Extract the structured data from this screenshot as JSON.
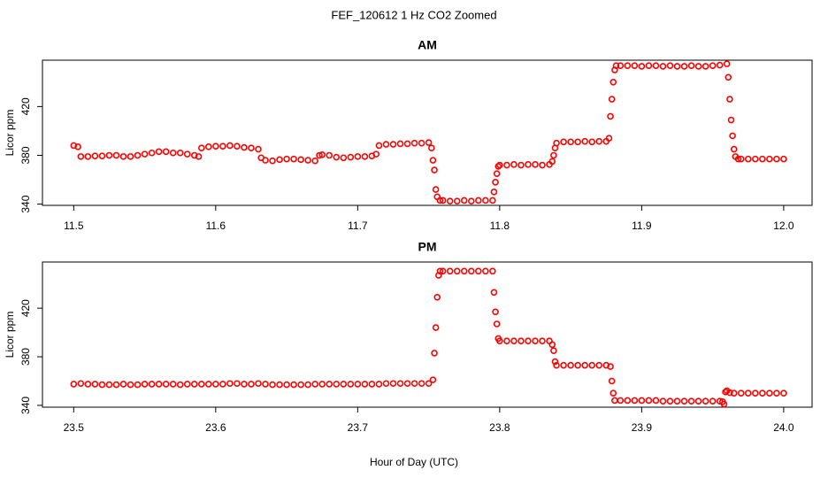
{
  "title": "FEF_120612 1 Hz CO2 Zoomed",
  "chart_data": [
    {
      "type": "scatter",
      "title": "AM",
      "ylabel": "Licor ppm",
      "color": "#ff0000",
      "xlim": [
        11.478,
        12.02
      ],
      "ylim": [
        339,
        458
      ],
      "xticks": [
        11.5,
        11.6,
        11.7,
        11.8,
        11.9,
        {
          "value": 12,
          "label": "12.0"
        }
      ],
      "yticks": [
        340,
        380,
        420
      ],
      "x": [
        11.5,
        11.503,
        11.505,
        11.51,
        11.515,
        11.52,
        11.525,
        11.53,
        11.535,
        11.54,
        11.545,
        11.55,
        11.555,
        11.56,
        11.565,
        11.57,
        11.575,
        11.58,
        11.585,
        11.588,
        11.59,
        11.595,
        11.6,
        11.605,
        11.61,
        11.615,
        11.62,
        11.625,
        11.63,
        11.632,
        11.635,
        11.64,
        11.645,
        11.65,
        11.655,
        11.66,
        11.665,
        11.67,
        11.673,
        11.675,
        11.68,
        11.685,
        11.69,
        11.695,
        11.7,
        11.705,
        11.71,
        11.713,
        11.715,
        11.72,
        11.725,
        11.73,
        11.735,
        11.74,
        11.745,
        11.75,
        11.752,
        11.753,
        11.754,
        11.755,
        11.756,
        11.758,
        11.76,
        11.765,
        11.77,
        11.775,
        11.78,
        11.785,
        11.79,
        11.795,
        11.796,
        11.797,
        11.798,
        11.799,
        11.8,
        11.805,
        11.81,
        11.815,
        11.82,
        11.825,
        11.83,
        11.835,
        11.837,
        11.838,
        11.839,
        11.84,
        11.845,
        11.85,
        11.855,
        11.86,
        11.865,
        11.87,
        11.875,
        11.877,
        11.878,
        11.879,
        11.88,
        11.881,
        11.882,
        11.885,
        11.89,
        11.895,
        11.9,
        11.905,
        11.91,
        11.915,
        11.92,
        11.925,
        11.93,
        11.935,
        11.94,
        11.945,
        11.95,
        11.955,
        11.96,
        11.961,
        11.962,
        11.963,
        11.964,
        11.965,
        11.966,
        11.968,
        11.97,
        11.975,
        11.98,
        11.985,
        11.99,
        11.995,
        12.0
      ],
      "values": [
        388,
        387,
        379,
        379,
        379.5,
        379.5,
        380,
        380,
        379,
        379,
        380,
        381,
        382,
        383,
        383,
        382,
        382,
        381,
        380,
        379,
        386,
        387,
        387.5,
        387.5,
        388,
        387.5,
        386.5,
        386,
        385,
        378,
        376,
        375.5,
        376.5,
        377,
        377,
        376.5,
        376,
        375.5,
        380,
        380.5,
        380,
        378.5,
        378,
        378.5,
        379,
        379,
        379.5,
        381,
        388,
        389,
        389,
        389.5,
        389.5,
        390,
        390,
        390.5,
        386,
        376,
        368,
        352,
        346,
        343,
        343,
        342.5,
        342.5,
        343,
        342.5,
        343,
        343,
        343,
        350,
        358,
        365,
        371,
        372,
        372,
        372.5,
        372,
        372.5,
        372.5,
        372,
        372.5,
        375,
        380,
        386,
        390,
        391,
        391,
        391,
        391.5,
        391,
        391.5,
        391.5,
        394,
        412,
        426,
        440,
        450,
        453.5,
        453.5,
        453.5,
        453.5,
        453,
        453.5,
        453.5,
        453,
        453.5,
        453,
        453,
        453.5,
        453,
        453,
        453.5,
        454,
        455,
        444,
        426,
        409,
        396,
        385,
        379,
        377,
        377,
        377,
        377,
        377,
        377,
        377,
        377
      ]
    },
    {
      "type": "scatter",
      "title": "PM",
      "ylabel": "Licor ppm",
      "xlabel": "Hour of Day (UTC)",
      "color": "#ff0000",
      "xlim": [
        23.478,
        24.02
      ],
      "ylim": [
        338.5,
        458
      ],
      "xticks": [
        23.5,
        23.6,
        23.7,
        23.8,
        23.9,
        {
          "value": 24,
          "label": "24.0"
        }
      ],
      "yticks": [
        340,
        380,
        420
      ],
      "x": [
        23.5,
        23.505,
        23.51,
        23.515,
        23.52,
        23.525,
        23.53,
        23.535,
        23.54,
        23.545,
        23.55,
        23.555,
        23.56,
        23.565,
        23.57,
        23.575,
        23.58,
        23.585,
        23.59,
        23.595,
        23.6,
        23.605,
        23.61,
        23.615,
        23.62,
        23.625,
        23.63,
        23.635,
        23.64,
        23.645,
        23.65,
        23.655,
        23.66,
        23.665,
        23.67,
        23.675,
        23.68,
        23.685,
        23.69,
        23.695,
        23.7,
        23.705,
        23.71,
        23.715,
        23.72,
        23.725,
        23.73,
        23.735,
        23.74,
        23.745,
        23.75,
        23.753,
        23.754,
        23.755,
        23.756,
        23.757,
        23.758,
        23.76,
        23.765,
        23.77,
        23.775,
        23.78,
        23.785,
        23.79,
        23.795,
        23.796,
        23.797,
        23.798,
        23.799,
        23.8,
        23.805,
        23.81,
        23.815,
        23.82,
        23.825,
        23.83,
        23.835,
        23.837,
        23.838,
        23.839,
        23.84,
        23.845,
        23.85,
        23.855,
        23.86,
        23.865,
        23.87,
        23.875,
        23.878,
        23.879,
        23.88,
        23.881,
        23.885,
        23.89,
        23.895,
        23.9,
        23.905,
        23.91,
        23.915,
        23.92,
        23.925,
        23.93,
        23.935,
        23.94,
        23.945,
        23.95,
        23.955,
        23.957,
        23.958,
        23.959,
        23.96,
        23.962,
        23.965,
        23.97,
        23.975,
        23.98,
        23.985,
        23.99,
        23.995,
        24.0
      ],
      "values": [
        357.5,
        358,
        357.5,
        357.5,
        357,
        357,
        357,
        357.5,
        357,
        357,
        357.5,
        357.5,
        357.5,
        357.5,
        357.5,
        357,
        357.5,
        357.5,
        357.5,
        357.5,
        357.5,
        357.5,
        358,
        358,
        357.5,
        357.5,
        358,
        357.5,
        357,
        357,
        357,
        357,
        357,
        357,
        357.5,
        357.5,
        357.5,
        357.5,
        357.5,
        357.5,
        357.5,
        357.5,
        357.5,
        357.5,
        358,
        358,
        358,
        358,
        358,
        358,
        358,
        361,
        383,
        404,
        429,
        447,
        450.5,
        450.5,
        450.5,
        450.5,
        450.5,
        450.5,
        450.5,
        450.5,
        450.5,
        433,
        417,
        407,
        395,
        393,
        393,
        393,
        393,
        393,
        393,
        393,
        393,
        390,
        385,
        376,
        373,
        373,
        373,
        373,
        373,
        373,
        373,
        373,
        372,
        360,
        350,
        344,
        344,
        344,
        344,
        344,
        344,
        344,
        343.5,
        343.5,
        343.5,
        343.5,
        343.5,
        343.5,
        343.5,
        343.5,
        343.5,
        343,
        341,
        351,
        352,
        350.5,
        350,
        350,
        350,
        350,
        350,
        350,
        350,
        350
      ]
    }
  ]
}
